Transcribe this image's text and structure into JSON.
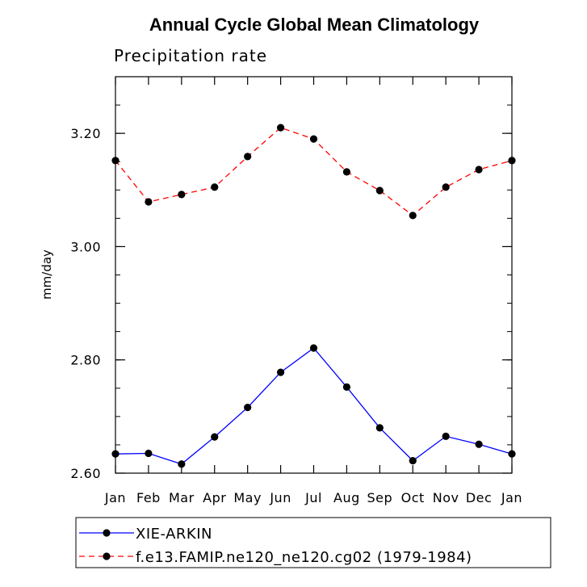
{
  "chart_data": {
    "type": "line",
    "title": "Annual Cycle Global Mean Climatology",
    "subtitle": "Precipitation rate",
    "xlabel": "",
    "ylabel": "mm/day",
    "ylim": [
      2.6,
      3.3
    ],
    "yticks": [
      "2.60",
      "2.80",
      "3.00",
      "3.20"
    ],
    "categories": [
      "Jan",
      "Feb",
      "Mar",
      "Apr",
      "May",
      "Jun",
      "Jul",
      "Aug",
      "Sep",
      "Oct",
      "Nov",
      "Dec",
      "Jan"
    ],
    "grid": false,
    "legend": "bottom",
    "series": [
      {
        "name": "XIE-ARKIN",
        "color": "#0000ff",
        "dash": "solid",
        "values": [
          2.634,
          2.635,
          2.616,
          2.664,
          2.716,
          2.778,
          2.821,
          2.752,
          2.68,
          2.622,
          2.665,
          2.651,
          2.634
        ]
      },
      {
        "name": "f.e13.FAMIP.ne120_ne120.cg02 (1979-1984)",
        "color": "#ff0000",
        "dash": "dashed",
        "values": [
          3.152,
          3.079,
          3.092,
          3.105,
          3.159,
          3.21,
          3.19,
          3.132,
          3.099,
          3.055,
          3.105,
          3.136,
          3.152
        ]
      }
    ]
  }
}
